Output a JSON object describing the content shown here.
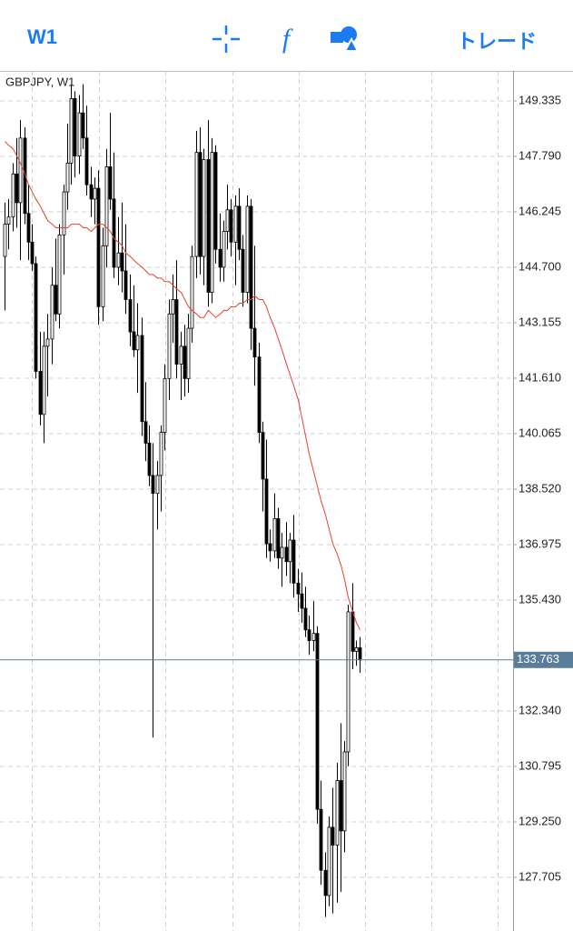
{
  "toolbar": {
    "timeframe": "W1",
    "trade": "トレード"
  },
  "chart_data": {
    "type": "candlestick",
    "title": "GBPJPY, W1",
    "ylim": [
      126.21,
      150.17
    ],
    "yticks": [
      {
        "value": 149.335,
        "label": "149.335"
      },
      {
        "value": 147.79,
        "label": "147.790"
      },
      {
        "value": 146.245,
        "label": "146.245"
      },
      {
        "value": 144.7,
        "label": "144.700"
      },
      {
        "value": 143.155,
        "label": "143.155"
      },
      {
        "value": 141.61,
        "label": "141.610"
      },
      {
        "value": 140.065,
        "label": "140.065"
      },
      {
        "value": 138.52,
        "label": "138.520"
      },
      {
        "value": 136.975,
        "label": "136.975"
      },
      {
        "value": 135.43,
        "label": "135.430"
      },
      {
        "value": 132.34,
        "label": "132.340"
      },
      {
        "value": 130.795,
        "label": "130.795"
      },
      {
        "value": 129.25,
        "label": "129.250"
      },
      {
        "value": 127.705,
        "label": "127.705"
      }
    ],
    "grid": true,
    "current_price": 133.763,
    "up_color": "#ffffff",
    "down_color": "#000000",
    "ma_color": "#e8402a",
    "price_line_color": "#5b7d9c",
    "ohlc": [
      [
        145.0,
        146.5,
        143.5,
        145.9
      ],
      [
        145.9,
        146.6,
        145.2,
        146.1
      ],
      [
        146.1,
        147.6,
        145.7,
        147.3
      ],
      [
        147.3,
        148.3,
        145.8,
        146.5
      ],
      [
        146.5,
        148.8,
        144.9,
        148.3
      ],
      [
        148.3,
        148.6,
        145.9,
        146.2
      ],
      [
        146.2,
        147.0,
        144.9,
        145.4
      ],
      [
        145.4,
        145.9,
        144.6,
        144.8
      ],
      [
        144.8,
        145.0,
        141.6,
        141.8
      ],
      [
        141.8,
        142.9,
        140.3,
        140.6
      ],
      [
        140.6,
        142.9,
        139.8,
        142.5
      ],
      [
        142.5,
        143.4,
        141.1,
        142.7
      ],
      [
        142.7,
        144.7,
        142.0,
        144.2
      ],
      [
        144.2,
        145.5,
        143.2,
        143.4
      ],
      [
        143.4,
        145.9,
        143.0,
        145.6
      ],
      [
        145.6,
        147.0,
        144.5,
        146.8
      ],
      [
        146.8,
        148.7,
        146.3,
        147.6
      ],
      [
        147.6,
        149.8,
        147.0,
        149.4
      ],
      [
        149.4,
        149.6,
        147.2,
        147.8
      ],
      [
        147.8,
        149.5,
        147.3,
        149.0
      ],
      [
        149.0,
        149.8,
        148.0,
        148.3
      ],
      [
        148.3,
        149.2,
        146.7,
        147.0
      ],
      [
        147.0,
        147.5,
        146.1,
        146.6
      ],
      [
        146.6,
        147.2,
        145.9,
        146.9
      ],
      [
        146.9,
        147.4,
        143.1,
        143.6
      ],
      [
        143.6,
        145.8,
        143.2,
        145.3
      ],
      [
        145.3,
        148.0,
        144.7,
        147.5
      ],
      [
        147.5,
        149.0,
        146.3,
        146.6
      ],
      [
        146.6,
        147.9,
        144.4,
        144.7
      ],
      [
        144.7,
        146.1,
        144.2,
        145.1
      ],
      [
        145.1,
        146.5,
        144.0,
        144.6
      ],
      [
        144.6,
        145.9,
        143.4,
        143.8
      ],
      [
        143.8,
        144.5,
        142.5,
        142.9
      ],
      [
        142.9,
        144.2,
        142.2,
        142.4
      ],
      [
        142.4,
        143.7,
        141.2,
        142.8
      ],
      [
        142.8,
        143.3,
        140.0,
        140.4
      ],
      [
        140.4,
        141.5,
        139.3,
        139.8
      ],
      [
        139.8,
        140.3,
        138.6,
        138.9
      ],
      [
        138.9,
        139.8,
        131.6,
        138.4
      ],
      [
        138.4,
        139.3,
        137.4,
        138.9
      ],
      [
        138.9,
        140.3,
        137.9,
        140.1
      ],
      [
        140.1,
        142.0,
        139.6,
        141.6
      ],
      [
        141.6,
        143.8,
        141.0,
        143.4
      ],
      [
        143.4,
        144.5,
        142.6,
        143.8
      ],
      [
        143.8,
        144.9,
        141.6,
        142.0
      ],
      [
        142.0,
        142.9,
        141.0,
        142.5
      ],
      [
        142.5,
        143.1,
        141.1,
        141.6
      ],
      [
        141.6,
        143.4,
        141.2,
        143.0
      ],
      [
        143.0,
        145.3,
        142.6,
        145.0
      ],
      [
        145.0,
        148.5,
        144.4,
        147.9
      ],
      [
        147.9,
        148.6,
        144.5,
        145.0
      ],
      [
        145.0,
        148.0,
        144.2,
        147.7
      ],
      [
        147.7,
        148.8,
        143.6,
        144.0
      ],
      [
        144.0,
        148.3,
        143.7,
        147.9
      ],
      [
        147.9,
        148.1,
        144.8,
        145.2
      ],
      [
        145.2,
        146.2,
        144.3,
        144.7
      ],
      [
        144.7,
        146.0,
        144.3,
        145.7
      ],
      [
        145.7,
        147.0,
        145.2,
        146.3
      ],
      [
        146.3,
        146.6,
        145.0,
        145.4
      ],
      [
        145.4,
        146.7,
        144.2,
        146.4
      ],
      [
        146.4,
        146.9,
        144.9,
        145.2
      ],
      [
        145.2,
        145.6,
        143.6,
        144.0
      ],
      [
        144.0,
        146.7,
        143.7,
        146.4
      ],
      [
        146.4,
        146.6,
        142.4,
        143.0
      ],
      [
        143.0,
        145.3,
        141.4,
        142.2
      ],
      [
        142.2,
        142.6,
        139.8,
        140.1
      ],
      [
        140.1,
        140.4,
        137.9,
        138.8
      ],
      [
        138.8,
        139.9,
        136.6,
        137.0
      ],
      [
        137.0,
        137.4,
        136.5,
        136.8
      ],
      [
        136.8,
        138.4,
        136.6,
        137.7
      ],
      [
        137.7,
        138.0,
        136.3,
        136.6
      ],
      [
        136.6,
        137.3,
        135.8,
        136.9
      ],
      [
        136.9,
        137.6,
        136.1,
        136.5
      ],
      [
        136.5,
        137.3,
        135.9,
        137.1
      ],
      [
        137.1,
        137.8,
        135.5,
        135.9
      ],
      [
        135.9,
        136.3,
        135.1,
        135.6
      ],
      [
        135.6,
        136.2,
        134.8,
        135.2
      ],
      [
        135.2,
        135.8,
        134.4,
        134.6
      ],
      [
        134.6,
        135.0,
        133.9,
        134.3
      ],
      [
        134.3,
        135.4,
        134.0,
        134.5
      ],
      [
        134.5,
        134.7,
        129.2,
        129.6
      ],
      [
        129.6,
        130.4,
        127.5,
        127.9
      ],
      [
        127.9,
        128.4,
        126.6,
        127.2
      ],
      [
        127.2,
        129.4,
        126.9,
        129.1
      ],
      [
        129.1,
        130.2,
        126.7,
        128.6
      ],
      [
        128.6,
        130.9,
        127.0,
        130.4
      ],
      [
        130.4,
        132.0,
        127.3,
        129.0
      ],
      [
        129.0,
        131.5,
        128.4,
        131.2
      ],
      [
        131.2,
        135.3,
        130.8,
        135.1
      ],
      [
        135.1,
        135.9,
        133.5,
        134.0
      ],
      [
        134.0,
        134.3,
        133.6,
        134.1
      ],
      [
        134.1,
        134.4,
        133.4,
        133.763
      ]
    ],
    "ma_values": [
      148.2,
      148.1,
      148.0,
      147.8,
      147.6,
      147.3,
      147.0,
      146.8,
      146.6,
      146.4,
      146.2,
      146.0,
      145.9,
      145.8,
      145.8,
      145.8,
      145.8,
      145.9,
      145.9,
      145.9,
      145.8,
      145.8,
      145.7,
      145.8,
      145.9,
      145.9,
      145.8,
      145.7,
      145.5,
      145.4,
      145.3,
      145.1,
      145.0,
      144.9,
      144.8,
      144.7,
      144.6,
      144.5,
      144.5,
      144.4,
      144.4,
      144.3,
      144.3,
      144.2,
      144.1,
      144.0,
      143.8,
      143.6,
      143.5,
      143.4,
      143.3,
      143.3,
      143.5,
      143.4,
      143.3,
      143.4,
      143.5,
      143.5,
      143.6,
      143.6,
      143.7,
      143.7,
      143.8,
      143.8,
      143.9,
      143.8,
      143.8,
      143.6,
      143.3,
      143.0,
      142.7,
      142.4,
      142.0,
      141.7,
      141.4,
      141.0,
      140.5,
      140.0,
      139.5,
      139.0,
      138.6,
      138.2,
      137.8,
      137.4,
      137.0,
      136.7,
      136.4,
      136.0,
      135.5,
      135.1,
      134.8,
      134.6
    ]
  }
}
